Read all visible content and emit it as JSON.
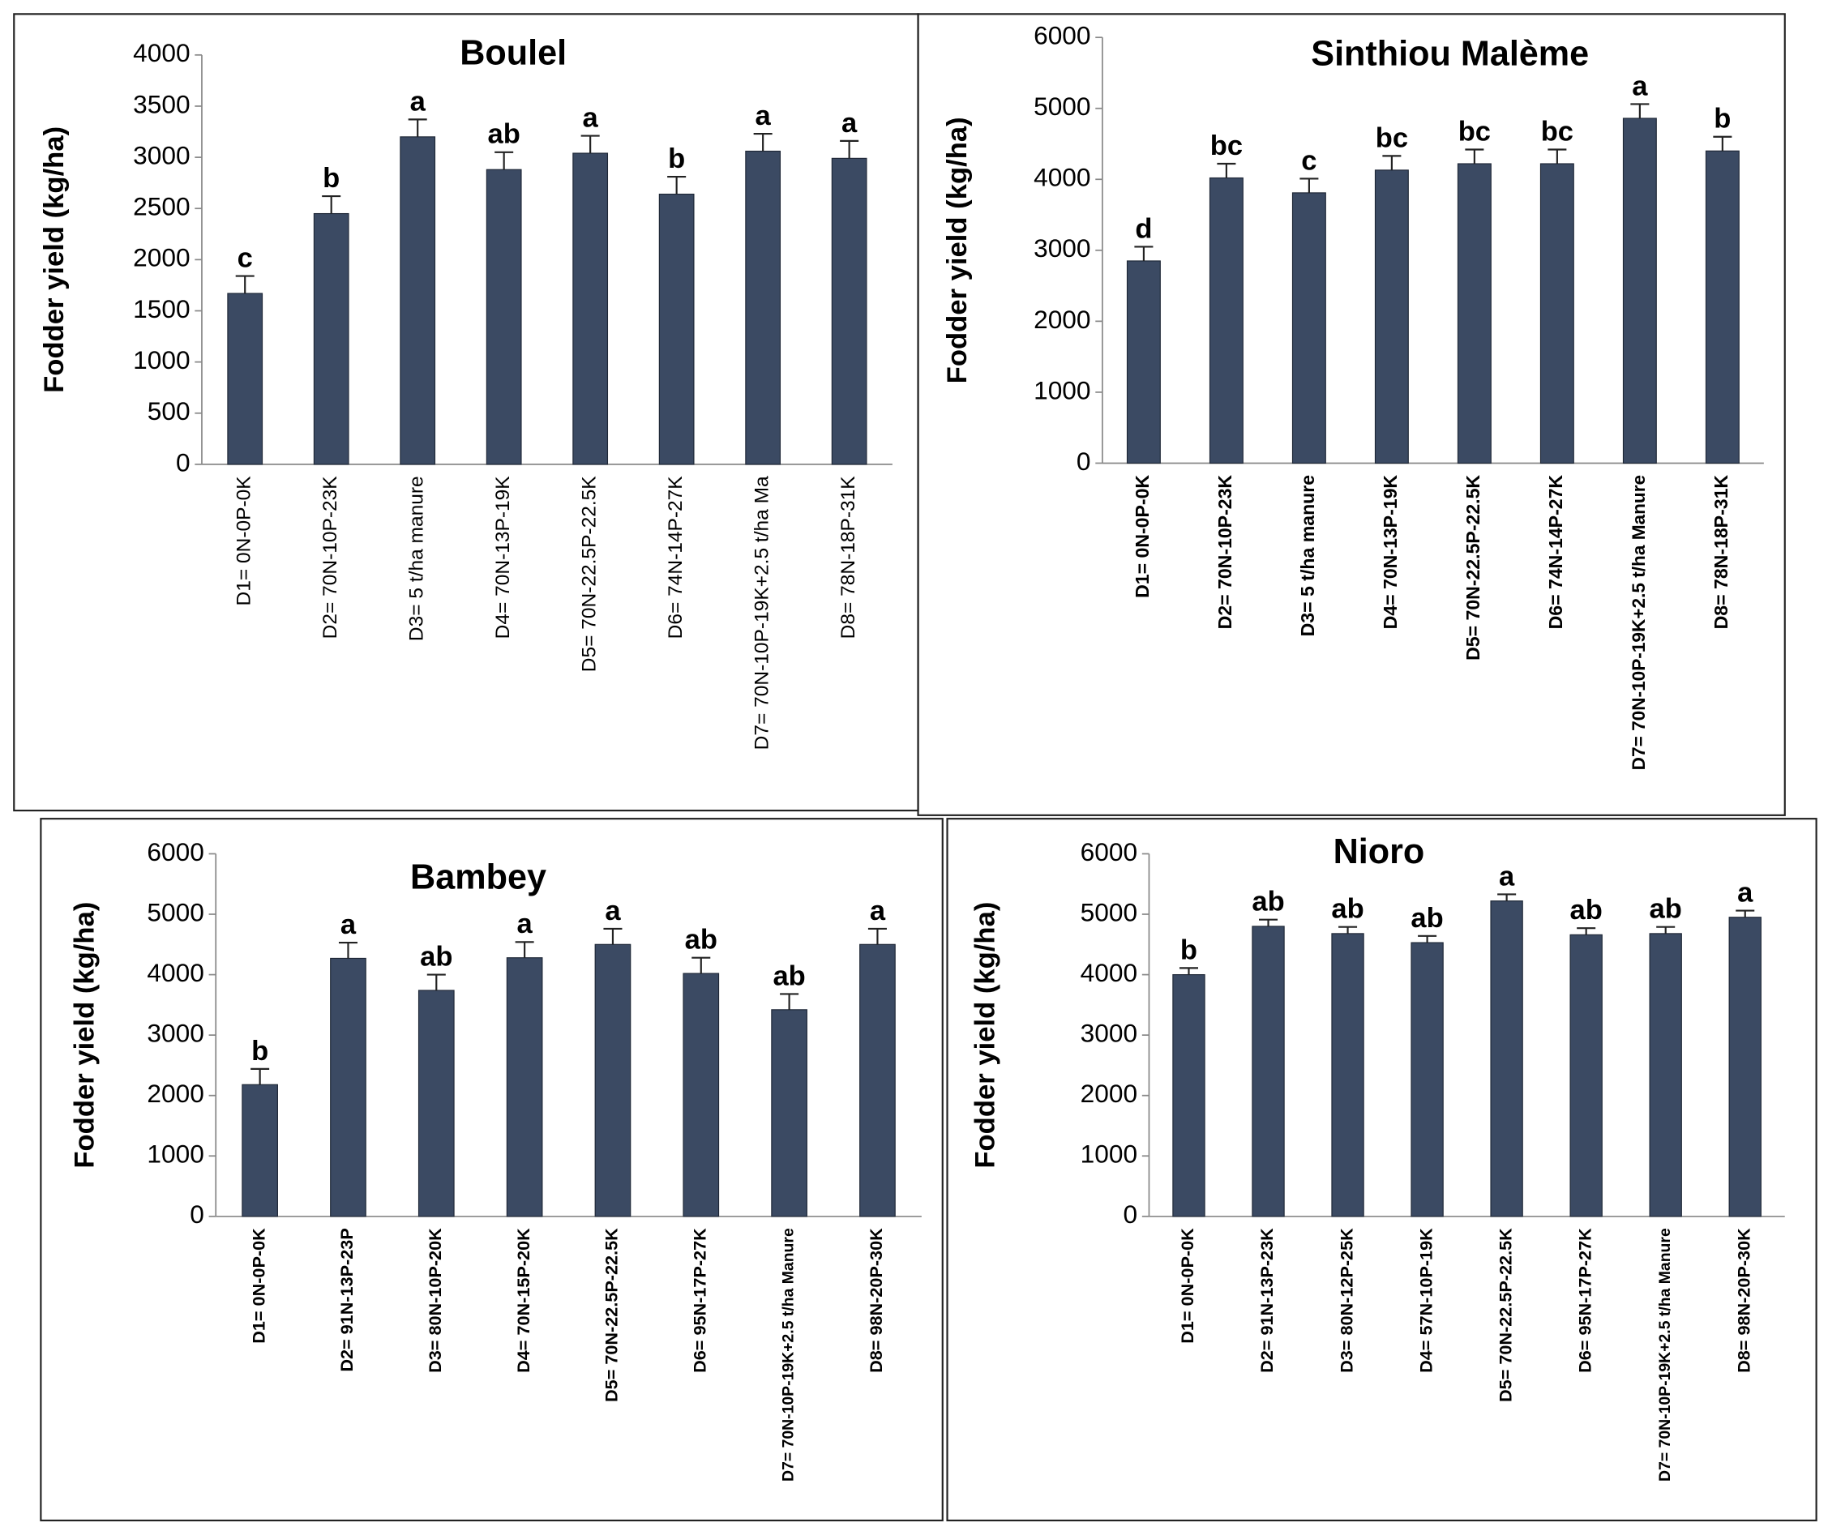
{
  "chart_data": [
    {
      "type": "bar",
      "title": "Boulel",
      "y_label": "Fodder yield (kg/ha)",
      "color": "#3b4a63",
      "categories": [
        "D1= 0N-0P-0K",
        "D2= 70N-10P-23K",
        "D3= 5 t/ha manure",
        "D4= 70N-13P-19K",
        "D5= 70N-22.5P-22.5K",
        "D6= 74N-14P-27K",
        "D7= 70N-10P-19K+2.5 t/ha Ma",
        "D8= 78N-18P-31K"
      ],
      "values": [
        1670,
        2450,
        3200,
        2880,
        3040,
        2640,
        3060,
        2990
      ],
      "errors": [
        170,
        170,
        170,
        170,
        170,
        170,
        170,
        170
      ],
      "labels": [
        "c",
        "b",
        "a",
        "ab",
        "a",
        "b",
        "a",
        "a"
      ],
      "ylim": [
        0,
        4000
      ],
      "yticks": [
        0,
        500,
        1000,
        1500,
        2000,
        2500,
        3000,
        3500,
        4000
      ]
    },
    {
      "type": "bar",
      "title": "Sinthiou Malème",
      "y_label": "Fodder yield (kg/ha)",
      "color": "#3b4a63",
      "categories": [
        "D1= 0N-0P-0K",
        "D2= 70N-10P-23K",
        "D3= 5 t/ha manure",
        "D4= 70N-13P-19K",
        "D5= 70N-22.5P-22.5K",
        "D6= 74N-14P-27K",
        "D7= 70N-10P-19K+2.5 t/ha Manure",
        "D8= 78N-18P-31K"
      ],
      "values": [
        2850,
        4020,
        3810,
        4130,
        4220,
        4220,
        4860,
        4400
      ],
      "errors": [
        200,
        200,
        200,
        200,
        200,
        200,
        200,
        200
      ],
      "labels": [
        "d",
        "bc",
        "c",
        "bc",
        "bc",
        "bc",
        "a",
        "b"
      ],
      "ylim": [
        0,
        6000
      ],
      "yticks": [
        0,
        1000,
        2000,
        3000,
        4000,
        5000,
        6000
      ]
    },
    {
      "type": "bar",
      "title": "Bambey",
      "y_label": "Fodder yield (kg/ha)",
      "color": "#3b4a63",
      "categories": [
        "D1= 0N-0P-0K",
        "D2= 91N-13P-23P",
        "D3= 80N-10P-20K",
        "D4= 70N-15P-20K",
        "D5= 70N-22.5P-22.5K",
        "D6= 95N-17P-27K",
        "D7= 70N-10P-19K+2.5 t/ha Manure",
        "D8= 98N-20P-30K"
      ],
      "values": [
        2180,
        4270,
        3740,
        4280,
        4500,
        4020,
        3420,
        4500
      ],
      "errors": [
        260,
        260,
        260,
        260,
        260,
        260,
        260,
        260
      ],
      "labels": [
        "b",
        "a",
        "ab",
        "a",
        "a",
        "ab",
        "ab",
        "a"
      ],
      "ylim": [
        0,
        6000
      ],
      "yticks": [
        0,
        1000,
        2000,
        3000,
        4000,
        5000,
        6000
      ]
    },
    {
      "type": "bar",
      "title": "Nioro",
      "y_label": "Fodder yield (kg/ha)",
      "color": "#3b4a63",
      "categories": [
        "D1= 0N-0P-0K",
        "D2= 91N-13P-23K",
        "D3= 80N-12P-25K",
        "D4= 57N-10P-19K",
        "D5= 70N-22.5P-22.5K",
        "D6= 95N-17P-27K",
        "D7= 70N-10P-19K+2.5 t/ha Manure",
        "D8= 98N-20P-30K"
      ],
      "values": [
        4000,
        4800,
        4680,
        4530,
        5220,
        4660,
        4680,
        4950
      ],
      "errors": [
        110,
        110,
        110,
        110,
        110,
        110,
        110,
        110
      ],
      "labels": [
        "b",
        "ab",
        "ab",
        "ab",
        "a",
        "ab",
        "ab",
        "a"
      ],
      "ylim": [
        0,
        6000
      ],
      "yticks": [
        0,
        1000,
        2000,
        3000,
        4000,
        5000,
        6000
      ]
    }
  ]
}
